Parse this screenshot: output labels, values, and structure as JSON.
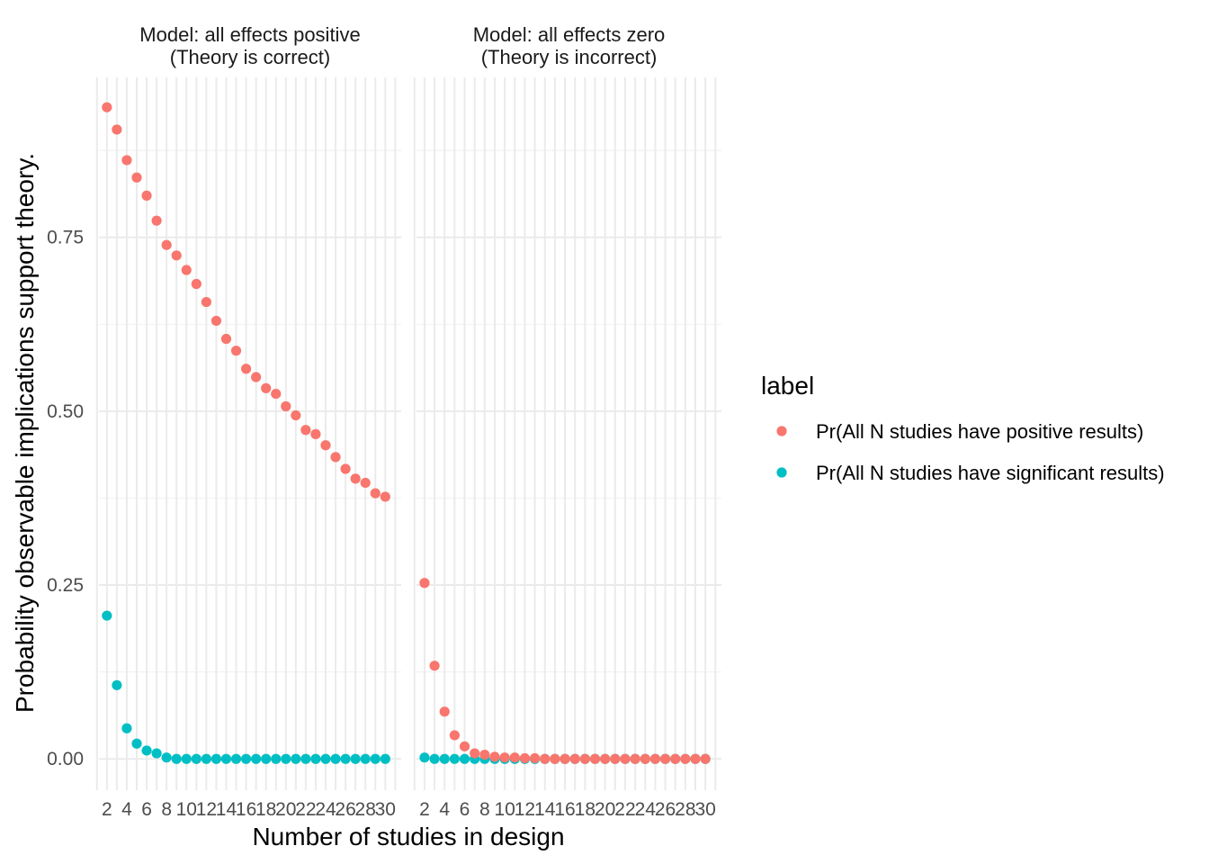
{
  "chart_data": {
    "type": "scatter",
    "xlabel": "Number of studies in design",
    "ylabel": "Probability observable implications support theory.",
    "x_ticks": [
      2,
      4,
      6,
      8,
      10,
      12,
      14,
      16,
      18,
      20,
      22,
      24,
      26,
      28,
      30
    ],
    "y_ticks": [
      0,
      0.25,
      0.5,
      0.75
    ],
    "y_tick_labels": [
      "0.00",
      "0.25",
      "0.50",
      "0.75"
    ],
    "xlim": [
      1.2,
      31.6
    ],
    "ylim": [
      -0.045,
      0.98
    ],
    "grid": true,
    "legend": {
      "title": "label",
      "position": "right",
      "entries": [
        {
          "label": "Pr(All N studies have positive results)",
          "color": "#F8766D"
        },
        {
          "label": "Pr(All N studies have significant results)",
          "color": "#00BFC4"
        }
      ]
    },
    "facets": [
      {
        "title_line1": "Model: all effects positive",
        "title_line2": "(Theory is correct)",
        "series": [
          {
            "name": "Pr(All N studies have positive results)",
            "color": "#F8766D",
            "x": [
              2,
              3,
              4,
              5,
              6,
              7,
              8,
              9,
              10,
              11,
              12,
              13,
              14,
              15,
              16,
              17,
              18,
              19,
              20,
              21,
              22,
              23,
              24,
              25,
              26,
              27,
              28,
              29,
              30
            ],
            "y": [
              0.937,
              0.905,
              0.861,
              0.836,
              0.81,
              0.774,
              0.739,
              0.724,
              0.703,
              0.683,
              0.657,
              0.63,
              0.604,
              0.587,
              0.561,
              0.549,
              0.533,
              0.525,
              0.507,
              0.494,
              0.473,
              0.467,
              0.451,
              0.434,
              0.417,
              0.403,
              0.397,
              0.382,
              0.377
            ]
          },
          {
            "name": "Pr(All N studies have significant results)",
            "color": "#00BFC4",
            "x": [
              2,
              3,
              4,
              5,
              6,
              7,
              8,
              9,
              10,
              11,
              12,
              13,
              14,
              15,
              16,
              17,
              18,
              19,
              20,
              21,
              22,
              23,
              24,
              25,
              26,
              27,
              28,
              29,
              30
            ],
            "y": [
              0.206,
              0.106,
              0.044,
              0.022,
              0.012,
              0.008,
              0.002,
              0,
              0,
              0,
              0,
              0,
              0,
              0,
              0,
              0,
              0,
              0,
              0,
              0,
              0,
              0,
              0,
              0,
              0,
              0,
              0,
              0,
              0
            ]
          }
        ]
      },
      {
        "title_line1": "Model: all effects zero",
        "title_line2": "(Theory is incorrect)",
        "series": [
          {
            "name": "Pr(All N studies have significant results)",
            "color": "#00BFC4",
            "x": [
              2,
              3,
              4,
              5,
              6,
              7,
              8,
              9,
              10,
              11,
              12,
              13,
              14,
              15,
              16,
              17,
              18,
              19,
              20,
              21,
              22,
              23,
              24,
              25,
              26,
              27,
              28,
              29,
              30
            ],
            "y": [
              0.002,
              0,
              0,
              0,
              0,
              0,
              0,
              0,
              0,
              0,
              0,
              0,
              0,
              0,
              0,
              0,
              0,
              0,
              0,
              0,
              0,
              0,
              0,
              0,
              0,
              0,
              0,
              0,
              0
            ]
          },
          {
            "name": "Pr(All N studies have positive results)",
            "color": "#F8766D",
            "x": [
              2,
              3,
              4,
              5,
              6,
              7,
              8,
              9,
              10,
              11,
              12,
              13,
              14,
              15,
              16,
              17,
              18,
              19,
              20,
              21,
              22,
              23,
              24,
              25,
              26,
              27,
              28,
              29,
              30
            ],
            "y": [
              0.253,
              0.134,
              0.068,
              0.034,
              0.018,
              0.008,
              0.006,
              0.003,
              0.002,
              0.002,
              0.001,
              0.001,
              0,
              0,
              0,
              0,
              0,
              0,
              0,
              0,
              0,
              0,
              0,
              0,
              0,
              0,
              0,
              0,
              0
            ]
          }
        ]
      }
    ]
  }
}
